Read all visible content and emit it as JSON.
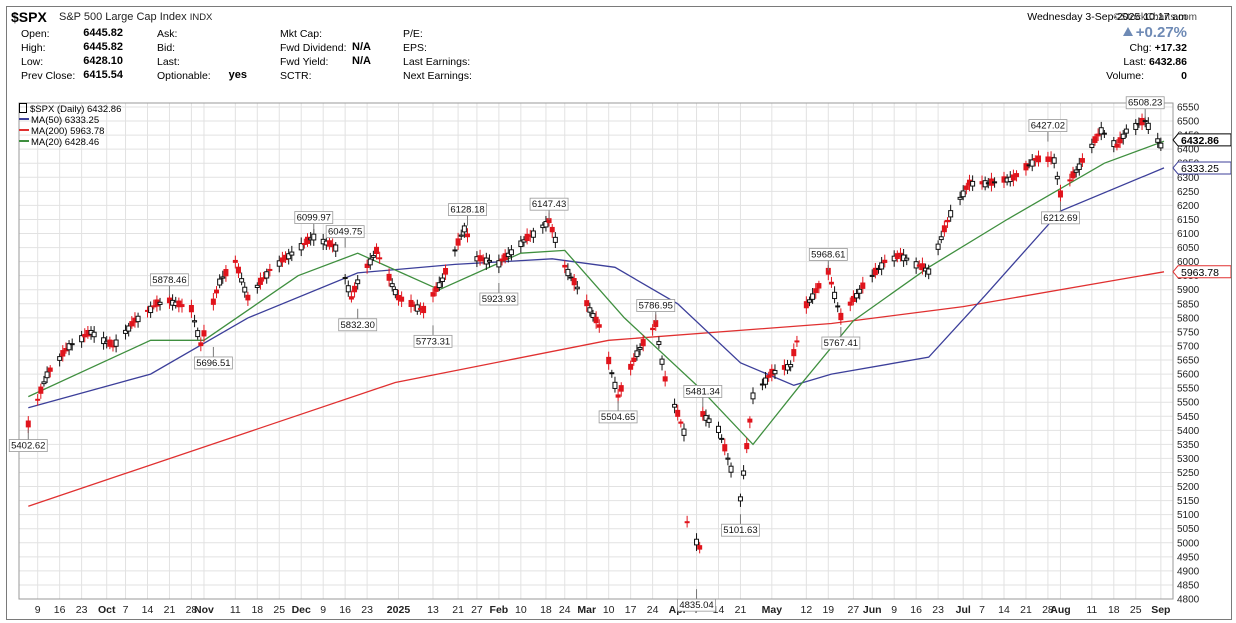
{
  "header": {
    "symbol": "$SPX",
    "name": "S&P 500 Large Cap Index",
    "exchange": "INDX",
    "brand": "©StockCharts.com",
    "datetime": "Wednesday   3-Sep-2025  10:17 am"
  },
  "quote": {
    "open_label": "Open:",
    "open": "6445.82",
    "high_label": "High:",
    "high": "6445.82",
    "low_label": "Low:",
    "low": "6428.10",
    "prevclose_label": "Prev Close:",
    "prevclose": "6415.54",
    "ask_label": "Ask:",
    "bid_label": "Bid:",
    "last_label": "Last:",
    "optionable_label": "Optionable:",
    "optionable": "yes",
    "mktcap_label": "Mkt Cap:",
    "fwddiv_label": "Fwd Dividend:",
    "fwddiv": "N/A",
    "fwdyield_label": "Fwd Yield:",
    "fwdyield": "N/A",
    "sctr_label": "SCTR:",
    "pe_label": "P/E:",
    "eps_label": "EPS:",
    "lastearn_label": "Last Earnings:",
    "nextearn_label": "Next Earnings:",
    "pct_change": "+0.27%",
    "chg_label": "Chg:",
    "chg": "+17.32",
    "last_label2": "Last:",
    "last": "6432.86",
    "volume_label": "Volume:",
    "volume": "0"
  },
  "legend": {
    "price": "$SPX (Daily) 6432.86",
    "ma50": "MA(50) 6333.25",
    "ma200": "MA(200) 5963.78",
    "ma20": "MA(20) 6428.46"
  },
  "colors": {
    "up": "#111111",
    "down": "#e0141c",
    "ma50": "#3c3f9a",
    "ma200": "#e03030",
    "ma20": "#3f8f3f",
    "grid": "#e2e2e2",
    "last_tag_bg": "#ffffff"
  },
  "icons": {
    "up_arrow": "triangle-up-icon"
  },
  "chart_data": {
    "type": "candlestick",
    "y_axis": {
      "min": 4800,
      "max": 6550,
      "step": 50,
      "side": "right"
    },
    "x_ticks": [
      {
        "date": "2024-09-09",
        "label": "9"
      },
      {
        "date": "2024-09-16",
        "label": "16"
      },
      {
        "date": "2024-09-23",
        "label": "23"
      },
      {
        "date": "2024-10-01",
        "label": "Oct",
        "bold": true
      },
      {
        "date": "2024-10-07",
        "label": "7"
      },
      {
        "date": "2024-10-14",
        "label": "14"
      },
      {
        "date": "2024-10-21",
        "label": "21"
      },
      {
        "date": "2024-10-28",
        "label": "28"
      },
      {
        "date": "2024-11-01",
        "label": "Nov",
        "bold": true
      },
      {
        "date": "2024-11-11",
        "label": "11"
      },
      {
        "date": "2024-11-18",
        "label": "18"
      },
      {
        "date": "2024-11-25",
        "label": "25"
      },
      {
        "date": "2024-12-02",
        "label": "Dec",
        "bold": true
      },
      {
        "date": "2024-12-09",
        "label": "9"
      },
      {
        "date": "2024-12-16",
        "label": "16"
      },
      {
        "date": "2024-12-23",
        "label": "23"
      },
      {
        "date": "2025-01-02",
        "label": "2025",
        "bold": true
      },
      {
        "date": "2025-01-13",
        "label": "13"
      },
      {
        "date": "2025-01-21",
        "label": "21"
      },
      {
        "date": "2025-01-27",
        "label": "27"
      },
      {
        "date": "2025-02-03",
        "label": "Feb",
        "bold": true
      },
      {
        "date": "2025-02-10",
        "label": "10"
      },
      {
        "date": "2025-02-18",
        "label": "18"
      },
      {
        "date": "2025-02-24",
        "label": "24"
      },
      {
        "date": "2025-03-03",
        "label": "Mar",
        "bold": true
      },
      {
        "date": "2025-03-10",
        "label": "10"
      },
      {
        "date": "2025-03-17",
        "label": "17"
      },
      {
        "date": "2025-03-24",
        "label": "24"
      },
      {
        "date": "2025-04-01",
        "label": "Apr",
        "bold": true
      },
      {
        "date": "2025-04-07",
        "label": "7"
      },
      {
        "date": "2025-04-14",
        "label": "14"
      },
      {
        "date": "2025-04-21",
        "label": "21"
      },
      {
        "date": "2025-05-01",
        "label": "May",
        "bold": true
      },
      {
        "date": "2025-05-12",
        "label": "12"
      },
      {
        "date": "2025-05-19",
        "label": "19"
      },
      {
        "date": "2025-05-27",
        "label": "27"
      },
      {
        "date": "2025-06-02",
        "label": "Jun",
        "bold": true
      },
      {
        "date": "2025-06-09",
        "label": "9"
      },
      {
        "date": "2025-06-16",
        "label": "16"
      },
      {
        "date": "2025-06-23",
        "label": "23"
      },
      {
        "date": "2025-07-01",
        "label": "Jul",
        "bold": true
      },
      {
        "date": "2025-07-07",
        "label": "7"
      },
      {
        "date": "2025-07-14",
        "label": "14"
      },
      {
        "date": "2025-07-21",
        "label": "21"
      },
      {
        "date": "2025-07-28",
        "label": "28"
      },
      {
        "date": "2025-08-01",
        "label": "Aug",
        "bold": true
      },
      {
        "date": "2025-08-11",
        "label": "11"
      },
      {
        "date": "2025-08-18",
        "label": "18"
      },
      {
        "date": "2025-08-25",
        "label": "25"
      },
      {
        "date": "2025-09-02",
        "label": "Sep",
        "bold": true
      }
    ],
    "price_points": [
      {
        "date": "2024-09-06",
        "close": 5420
      },
      {
        "date": "2024-09-12",
        "close": 5600
      },
      {
        "date": "2024-09-19",
        "close": 5700
      },
      {
        "date": "2024-09-26",
        "close": 5750
      },
      {
        "date": "2024-10-03",
        "close": 5700
      },
      {
        "date": "2024-10-10",
        "close": 5790
      },
      {
        "date": "2024-10-17",
        "close": 5850
      },
      {
        "date": "2024-10-21",
        "close": 5860
      },
      {
        "date": "2024-10-28",
        "close": 5830
      },
      {
        "date": "2024-10-31",
        "close": 5705
      },
      {
        "date": "2024-11-06",
        "close": 5930
      },
      {
        "date": "2024-11-11",
        "close": 6000
      },
      {
        "date": "2024-11-15",
        "close": 5870
      },
      {
        "date": "2024-11-22",
        "close": 5970
      },
      {
        "date": "2024-11-29",
        "close": 6030
      },
      {
        "date": "2024-12-06",
        "close": 6090
      },
      {
        "date": "2024-12-13",
        "close": 6051
      },
      {
        "date": "2024-12-18",
        "close": 5870
      },
      {
        "date": "2024-12-20",
        "close": 5930
      },
      {
        "date": "2024-12-26",
        "close": 6037
      },
      {
        "date": "2025-01-02",
        "close": 5870
      },
      {
        "date": "2025-01-10",
        "close": 5827
      },
      {
        "date": "2025-01-16",
        "close": 5937
      },
      {
        "date": "2025-01-23",
        "close": 6119
      },
      {
        "date": "2025-01-27",
        "close": 6012
      },
      {
        "date": "2025-02-03",
        "close": 5995
      },
      {
        "date": "2025-02-10",
        "close": 6066
      },
      {
        "date": "2025-02-19",
        "close": 6144
      },
      {
        "date": "2025-02-24",
        "close": 5983
      },
      {
        "date": "2025-03-03",
        "close": 5850
      },
      {
        "date": "2025-03-07",
        "close": 5770
      },
      {
        "date": "2025-03-13",
        "close": 5521
      },
      {
        "date": "2025-03-19",
        "close": 5675
      },
      {
        "date": "2025-03-25",
        "close": 5777
      },
      {
        "date": "2025-03-28",
        "close": 5581
      },
      {
        "date": "2025-04-03",
        "close": 5396
      },
      {
        "date": "2025-04-04",
        "close": 5074
      },
      {
        "date": "2025-04-08",
        "close": 4982
      },
      {
        "date": "2025-04-09",
        "close": 5456
      },
      {
        "date": "2025-04-14",
        "close": 5406
      },
      {
        "date": "2025-04-21",
        "close": 5158
      },
      {
        "date": "2025-04-25",
        "close": 5525
      },
      {
        "date": "2025-05-01",
        "close": 5604
      },
      {
        "date": "2025-05-07",
        "close": 5631
      },
      {
        "date": "2025-05-12",
        "close": 5844
      },
      {
        "date": "2025-05-19",
        "close": 5963
      },
      {
        "date": "2025-05-23",
        "close": 5802
      },
      {
        "date": "2025-05-30",
        "close": 5912
      },
      {
        "date": "2025-06-06",
        "close": 6000
      },
      {
        "date": "2025-06-11",
        "close": 6022
      },
      {
        "date": "2025-06-20",
        "close": 5967
      },
      {
        "date": "2025-06-27",
        "close": 6173
      },
      {
        "date": "2025-07-03",
        "close": 6279
      },
      {
        "date": "2025-07-10",
        "close": 6280
      },
      {
        "date": "2025-07-17",
        "close": 6297
      },
      {
        "date": "2025-07-24",
        "close": 6363
      },
      {
        "date": "2025-07-30",
        "close": 6362
      },
      {
        "date": "2025-08-01",
        "close": 6238
      },
      {
        "date": "2025-08-07",
        "close": 6340
      },
      {
        "date": "2025-08-14",
        "close": 6468
      },
      {
        "date": "2025-08-19",
        "close": 6411
      },
      {
        "date": "2025-08-22",
        "close": 6466
      },
      {
        "date": "2025-08-28",
        "close": 6501
      },
      {
        "date": "2025-09-02",
        "close": 6415
      },
      {
        "date": "2025-09-03",
        "close": 6432.86
      }
    ],
    "ma50_points": [
      {
        "date": "2024-09-06",
        "value": 5480
      },
      {
        "date": "2024-10-15",
        "value": 5600
      },
      {
        "date": "2024-11-15",
        "value": 5800
      },
      {
        "date": "2024-12-20",
        "value": 5960
      },
      {
        "date": "2025-01-20",
        "value": 5990
      },
      {
        "date": "2025-02-20",
        "value": 6010
      },
      {
        "date": "2025-03-12",
        "value": 5980
      },
      {
        "date": "2025-04-01",
        "value": 5850
      },
      {
        "date": "2025-04-21",
        "value": 5640
      },
      {
        "date": "2025-05-08",
        "value": 5560
      },
      {
        "date": "2025-05-20",
        "value": 5600
      },
      {
        "date": "2025-06-20",
        "value": 5660
      },
      {
        "date": "2025-07-08",
        "value": 5880
      },
      {
        "date": "2025-08-01",
        "value": 6180
      },
      {
        "date": "2025-09-03",
        "value": 6333.25
      }
    ],
    "ma200_points": [
      {
        "date": "2024-09-06",
        "value": 5130
      },
      {
        "date": "2025-01-01",
        "value": 5570
      },
      {
        "date": "2025-03-10",
        "value": 5720
      },
      {
        "date": "2025-05-20",
        "value": 5780
      },
      {
        "date": "2025-07-01",
        "value": 5840
      },
      {
        "date": "2025-09-03",
        "value": 5963.78
      }
    ],
    "ma20_points": [
      {
        "date": "2024-09-06",
        "value": 5520
      },
      {
        "date": "2024-10-15",
        "value": 5720
      },
      {
        "date": "2024-11-01",
        "value": 5720
      },
      {
        "date": "2024-12-01",
        "value": 5950
      },
      {
        "date": "2024-12-20",
        "value": 6030
      },
      {
        "date": "2025-01-15",
        "value": 5900
      },
      {
        "date": "2025-02-10",
        "value": 6030
      },
      {
        "date": "2025-02-24",
        "value": 6040
      },
      {
        "date": "2025-03-15",
        "value": 5800
      },
      {
        "date": "2025-04-08",
        "value": 5550
      },
      {
        "date": "2025-04-25",
        "value": 5350
      },
      {
        "date": "2025-05-10",
        "value": 5560
      },
      {
        "date": "2025-05-27",
        "value": 5790
      },
      {
        "date": "2025-06-20",
        "value": 5980
      },
      {
        "date": "2025-07-15",
        "value": 6150
      },
      {
        "date": "2025-08-15",
        "value": 6350
      },
      {
        "date": "2025-09-03",
        "value": 6428.46
      }
    ],
    "annotations": [
      {
        "date": "2024-09-06",
        "value": 5402.62,
        "label": "5402.62",
        "pos": "below"
      },
      {
        "date": "2024-10-21",
        "value": 5878.46,
        "label": "5878.46",
        "pos": "above"
      },
      {
        "date": "2024-11-04",
        "value": 5696.51,
        "label": "5696.51",
        "pos": "below"
      },
      {
        "date": "2024-12-06",
        "value": 6099.97,
        "label": "6099.97",
        "pos": "above"
      },
      {
        "date": "2024-12-16",
        "value": 6049.75,
        "label": "6049.75",
        "pos": "above"
      },
      {
        "date": "2024-12-20",
        "value": 5832.3,
        "label": "5832.30",
        "pos": "below"
      },
      {
        "date": "2025-01-13",
        "value": 5773.31,
        "label": "5773.31",
        "pos": "below"
      },
      {
        "date": "2025-01-24",
        "value": 6128.18,
        "label": "6128.18",
        "pos": "above"
      },
      {
        "date": "2025-02-03",
        "value": 5923.93,
        "label": "5923.93",
        "pos": "below"
      },
      {
        "date": "2025-02-19",
        "value": 6147.43,
        "label": "6147.43",
        "pos": "above"
      },
      {
        "date": "2025-03-13",
        "value": 5504.65,
        "label": "5504.65",
        "pos": "below"
      },
      {
        "date": "2025-03-25",
        "value": 5786.95,
        "label": "5786.95",
        "pos": "above"
      },
      {
        "date": "2025-04-07",
        "value": 4835.04,
        "label": "4835.04",
        "pos": "below"
      },
      {
        "date": "2025-04-09",
        "value": 5481.34,
        "label": "5481.34",
        "pos": "above"
      },
      {
        "date": "2025-04-21",
        "value": 5101.63,
        "label": "5101.63",
        "pos": "below"
      },
      {
        "date": "2025-05-19",
        "value": 5968.61,
        "label": "5968.61",
        "pos": "above"
      },
      {
        "date": "2025-05-23",
        "value": 5767.41,
        "label": "5767.41",
        "pos": "below"
      },
      {
        "date": "2025-07-28",
        "value": 6427.02,
        "label": "6427.02",
        "pos": "above"
      },
      {
        "date": "2025-08-01",
        "value": 6212.69,
        "label": "6212.69",
        "pos": "below"
      },
      {
        "date": "2025-08-28",
        "value": 6508.23,
        "label": "6508.23",
        "pos": "above"
      }
    ],
    "last_tags": [
      {
        "value": 6432.86,
        "label": "6432.86",
        "type": "price"
      },
      {
        "value": 6333.25,
        "label": "6333.25",
        "type": "ma50"
      },
      {
        "value": 5963.78,
        "label": "5963.78",
        "type": "ma200"
      }
    ]
  }
}
